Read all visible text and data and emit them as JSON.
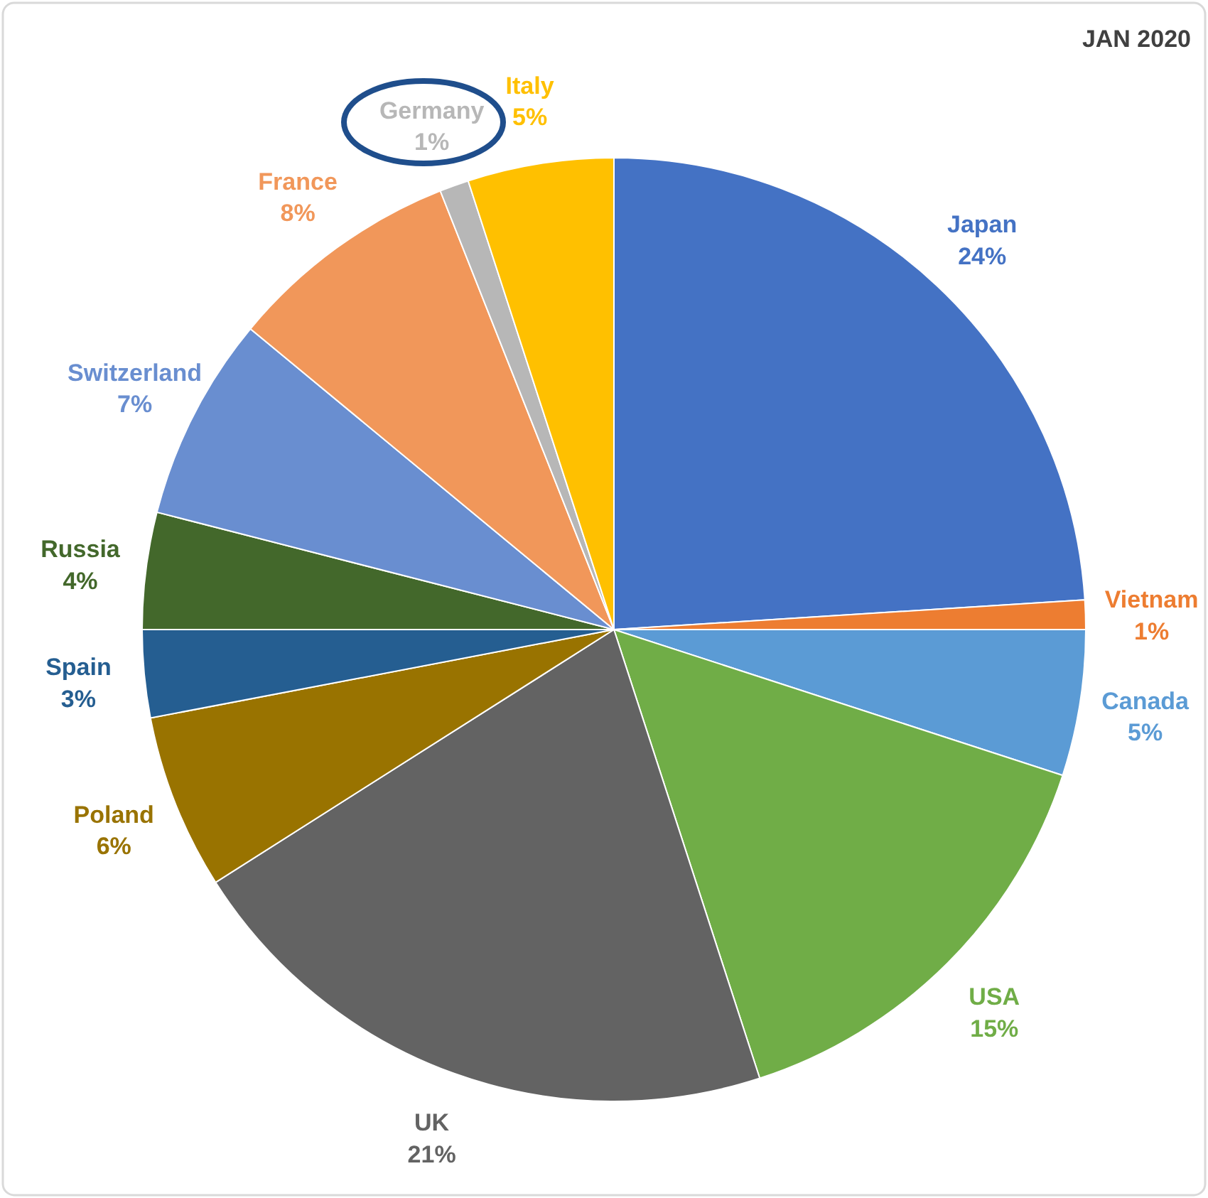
{
  "chart_data": {
    "type": "pie",
    "title": "JAN 2020",
    "categories": [
      "Japan",
      "Vietnam",
      "Canada",
      "USA",
      "UK",
      "Poland",
      "Spain",
      "Russia",
      "Switzerland",
      "France",
      "Germany",
      "Italy"
    ],
    "values": [
      24,
      1,
      5,
      15,
      21,
      6,
      3,
      4,
      7,
      8,
      1,
      5
    ],
    "value_labels": [
      "24%",
      "1%",
      "5%",
      "15%",
      "21%",
      "6%",
      "3%",
      "4%",
      "7%",
      "8%",
      "1%",
      "5%"
    ],
    "colors": [
      "#4472c4",
      "#ed7d31",
      "#5b9bd5",
      "#70ad47",
      "#636363",
      "#997300",
      "#255e91",
      "#43682b",
      "#698ed0",
      "#f1975a",
      "#b7b7b7",
      "#ffc000"
    ]
  }
}
